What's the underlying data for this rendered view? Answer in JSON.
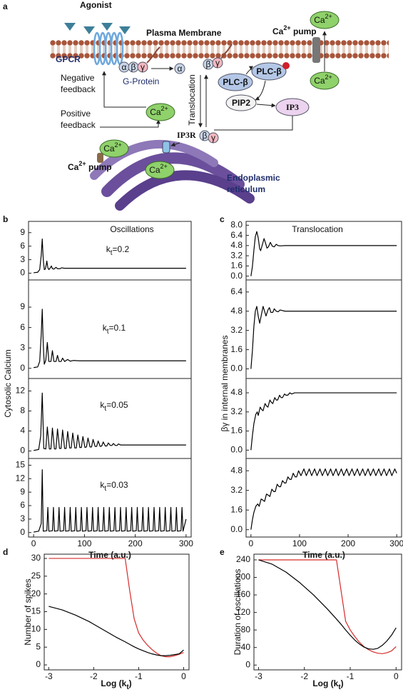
{
  "diagram": {
    "panel_label": "a",
    "agonist": "Agonist",
    "plasma_membrane": "Plasma Membrane",
    "gpcr": "GPCR",
    "g_protein": "G-Protein",
    "g_subunits": [
      "α",
      "β",
      "γ"
    ],
    "alpha": "α",
    "beta_gamma_membrane": [
      "β",
      "γ"
    ],
    "beta_gamma_er": [
      "β",
      "γ"
    ],
    "plc": [
      "PLC-β",
      "PLC-β"
    ],
    "pip2": "PIP2",
    "ip3": "IP3",
    "ip3r": "IP3R",
    "translocation": "Translocation",
    "negative_feedback": [
      "Negative",
      "feedback"
    ],
    "positive_feedback": [
      "Positive",
      "feedback"
    ],
    "pump_top": {
      "label": "Ca",
      "sup": "2+",
      "suffix": " pump"
    },
    "pump_er": {
      "label": "Ca",
      "sup": "2+",
      "suffix": " pump"
    },
    "calcium": [
      {
        "label": "Ca",
        "sup": "2+"
      },
      {
        "label": "Ca",
        "sup": "2+"
      },
      {
        "label": "Ca",
        "sup": "2+"
      },
      {
        "label": "Ca",
        "sup": "2+"
      },
      {
        "label": "Ca",
        "sup": "2+"
      }
    ],
    "er": [
      "Endoplasmic",
      "reticulum"
    ]
  },
  "chart_data": [
    {
      "type": "line",
      "panel": "b",
      "title": "Oscillations",
      "ylabel": "Cytosolic Calcium",
      "annotation": [
        "k",
        "t",
        "=0.2"
      ],
      "color": "#000000",
      "x": [
        0,
        8,
        12,
        15,
        17,
        19,
        21,
        23,
        25,
        26,
        28,
        30,
        33,
        35,
        37,
        40,
        44,
        47,
        52,
        55,
        60,
        300
      ],
      "values": [
        0.1,
        0.2,
        0.8,
        4,
        7.6,
        3,
        0.8,
        0.9,
        2,
        2.7,
        1.2,
        0.8,
        1.2,
        1.6,
        1,
        0.9,
        1.3,
        1,
        1,
        1.2,
        1.1,
        1.1
      ],
      "xlim": [
        -10,
        310
      ],
      "ylim": [
        -1.5,
        11.5
      ],
      "yticks": [
        0,
        3,
        6,
        9
      ]
    },
    {
      "type": "line",
      "annotation": [
        "k",
        "t",
        "=0.1"
      ],
      "color": "#000000",
      "x": [
        0,
        8,
        12,
        15,
        17,
        19,
        21,
        24,
        27,
        30,
        34,
        37,
        40,
        44,
        47,
        50,
        54,
        57,
        61,
        67,
        72,
        78,
        90,
        300
      ],
      "values": [
        0.1,
        0.2,
        1,
        5,
        8.7,
        3.5,
        0.6,
        1.2,
        3.8,
        1,
        1,
        2.6,
        1,
        1,
        1.9,
        1,
        1,
        1.5,
        1,
        1.3,
        1.05,
        1.15,
        1.1,
        1.1
      ],
      "xlim": [
        -10,
        310
      ],
      "ylim": [
        -1.5,
        13
      ],
      "yticks": [
        0,
        3,
        6,
        9
      ]
    },
    {
      "type": "line",
      "annotation": [
        "k",
        "t",
        "=0.05"
      ],
      "color": "#000000",
      "x": [
        0,
        10,
        14,
        17,
        20,
        24,
        27,
        31,
        34,
        37,
        41,
        44,
        47,
        51,
        54,
        57,
        61,
        64,
        67,
        71,
        74,
        77,
        81,
        84,
        87,
        91,
        94,
        97,
        101,
        104,
        107,
        111,
        114,
        117,
        121,
        124,
        127,
        131,
        134,
        137,
        141,
        144,
        147,
        151,
        154,
        157,
        161,
        164,
        167,
        171,
        300
      ],
      "values": [
        0.1,
        0.3,
        3,
        11.6,
        0.5,
        0.4,
        4.8,
        0.4,
        0.4,
        4.6,
        0.4,
        0.4,
        4.4,
        0.5,
        0.5,
        4.2,
        0.5,
        0.5,
        3.9,
        0.6,
        0.6,
        3.6,
        0.6,
        0.6,
        3.2,
        0.7,
        0.7,
        2.9,
        0.7,
        0.8,
        2.6,
        0.8,
        0.8,
        2.3,
        0.9,
        0.9,
        2,
        0.9,
        1,
        1.8,
        1,
        1,
        1.6,
        1.1,
        1.1,
        1.5,
        1.1,
        1.1,
        1.4,
        1.2,
        1.2
      ],
      "xlim": [
        -10,
        310
      ],
      "ylim": [
        -1.5,
        14.5
      ],
      "yticks": [
        0,
        4,
        8,
        12
      ]
    },
    {
      "type": "line",
      "annotation": [
        "k",
        "t",
        "=0.03"
      ],
      "xlabel": "Time (a.u.)",
      "color": "#000000",
      "x": [
        0,
        10,
        15,
        17,
        19,
        26,
        28,
        30,
        37,
        39,
        41,
        48,
        50,
        52,
        59,
        61,
        63,
        70,
        72,
        74,
        81,
        83,
        85,
        92,
        94,
        96,
        103,
        105,
        107,
        114,
        116,
        118,
        125,
        127,
        129,
        136,
        138,
        140,
        147,
        149,
        151,
        158,
        160,
        162,
        169,
        171,
        173,
        180,
        182,
        184,
        191,
        193,
        195,
        202,
        204,
        206,
        213,
        215,
        217,
        224,
        226,
        228,
        235,
        237,
        239,
        246,
        248,
        250,
        257,
        259,
        261,
        268,
        270,
        272,
        279,
        281,
        283,
        290,
        292,
        294,
        300
      ],
      "values": [
        0.1,
        0.3,
        2,
        14,
        0.3,
        0.4,
        5.6,
        0.3,
        0.4,
        5.6,
        0.3,
        0.4,
        5.6,
        0.3,
        0.4,
        5.6,
        0.3,
        0.4,
        5.6,
        0.3,
        0.4,
        5.6,
        0.3,
        0.4,
        5.6,
        0.3,
        0.4,
        5.6,
        0.3,
        0.4,
        5.6,
        0.3,
        0.4,
        5.6,
        0.3,
        0.4,
        5.6,
        0.3,
        0.4,
        5.6,
        0.3,
        0.4,
        5.6,
        0.3,
        0.4,
        5.6,
        0.3,
        0.4,
        5.6,
        0.3,
        0.4,
        5.6,
        0.3,
        0.4,
        5.6,
        0.3,
        0.4,
        5.6,
        0.3,
        0.4,
        5.6,
        0.3,
        0.4,
        5.6,
        0.3,
        0.4,
        5.6,
        0.3,
        0.4,
        5.6,
        0.3,
        0.4,
        5.6,
        0.3,
        0.4,
        5.6,
        0.3,
        0.4,
        5.6,
        0.3,
        3
      ],
      "xlim": [
        -10,
        310
      ],
      "ylim": [
        -1,
        16.5
      ],
      "yticks": [
        0,
        3,
        6,
        9,
        12,
        15
      ],
      "xticks": [
        0,
        100,
        200,
        300
      ]
    },
    {
      "type": "line",
      "panel": "c",
      "title": "Translocation",
      "ylabel": "βγ in internal membranes",
      "color": "#000000",
      "x": [
        0,
        3,
        6,
        9,
        12,
        15,
        18,
        20,
        23,
        27,
        30,
        33,
        36,
        40,
        44,
        48,
        52,
        56,
        60,
        70,
        300
      ],
      "values": [
        0,
        1.5,
        4,
        6.2,
        7,
        6,
        4.3,
        4,
        4.8,
        5.9,
        5.2,
        4.4,
        4.6,
        5.3,
        4.7,
        4.6,
        5,
        4.8,
        4.75,
        4.8,
        4.8
      ],
      "xlim": [
        -10,
        310
      ],
      "ylim": [
        -0.6,
        8.6
      ],
      "yticks": [
        {
          "value": 0,
          "label": "0.0"
        },
        1.6,
        3.2,
        4.8,
        6.4,
        {
          "value": 8,
          "label": "8.0"
        }
      ]
    },
    {
      "type": "line",
      "color": "#000000",
      "x": [
        0,
        3,
        6,
        9,
        12,
        15,
        18,
        21,
        25,
        28,
        31,
        35,
        38,
        41,
        45,
        48,
        52,
        56,
        60,
        70,
        300
      ],
      "values": [
        0,
        1.5,
        3.5,
        4.8,
        5.2,
        4.4,
        3.8,
        4.4,
        5.2,
        4.8,
        4.4,
        4.9,
        5.1,
        4.7,
        4.7,
        5,
        4.8,
        4.75,
        4.9,
        4.8,
        4.8
      ],
      "xlim": [
        -10,
        310
      ],
      "ylim": [
        -0.8,
        7.4
      ],
      "yticks": [
        {
          "value": 0,
          "label": "0.0"
        },
        1.6,
        3.2,
        4.8,
        6.4
      ]
    },
    {
      "type": "line",
      "color": "#000000",
      "x": [
        0,
        3,
        6,
        10,
        13,
        15,
        19,
        22,
        25,
        29,
        32,
        35,
        39,
        42,
        45,
        49,
        52,
        55,
        59,
        62,
        65,
        69,
        72,
        76,
        80,
        84,
        90,
        100,
        300
      ],
      "values": [
        0,
        1.2,
        2.2,
        3,
        3.2,
        2.9,
        3.6,
        3.4,
        3.3,
        3.9,
        3.7,
        3.6,
        4.2,
        4,
        3.9,
        4.4,
        4.2,
        4.2,
        4.6,
        4.4,
        4.4,
        4.7,
        4.6,
        4.6,
        4.8,
        4.7,
        4.8,
        4.8,
        4.8
      ],
      "xlim": [
        -10,
        310
      ],
      "ylim": [
        -0.7,
        6
      ],
      "yticks": [
        {
          "value": 0,
          "label": "0.0"
        },
        1.6,
        3.2,
        4.8
      ]
    },
    {
      "type": "line",
      "xlabel": "Time (a.u.)",
      "color": "#000000",
      "x": [
        0,
        3,
        6,
        10,
        14,
        17,
        21,
        25,
        28,
        32,
        36,
        39,
        43,
        47,
        50,
        54,
        58,
        61,
        65,
        69,
        72,
        76,
        80,
        83,
        87,
        91,
        94,
        98,
        103,
        109,
        114,
        120,
        125,
        131,
        136,
        142,
        147,
        153,
        158,
        164,
        169,
        175,
        180,
        186,
        191,
        197,
        202,
        208,
        213,
        219,
        224,
        230,
        235,
        241,
        246,
        252,
        257,
        263,
        268,
        274,
        279,
        285,
        290,
        296,
        300
      ],
      "values": [
        0,
        0.8,
        1.4,
        1.9,
        2.1,
        1.9,
        2.5,
        2.4,
        2.3,
        2.9,
        2.8,
        2.7,
        3.3,
        3.1,
        3.1,
        3.7,
        3.5,
        3.5,
        4,
        3.8,
        3.8,
        4.3,
        4.1,
        4.1,
        4.6,
        4.3,
        4.3,
        4.8,
        4.4,
        4.95,
        4.4,
        4.95,
        4.4,
        4.95,
        4.4,
        4.95,
        4.4,
        4.95,
        4.4,
        4.95,
        4.4,
        4.95,
        4.4,
        4.95,
        4.4,
        4.95,
        4.4,
        4.95,
        4.4,
        4.95,
        4.4,
        4.95,
        4.4,
        4.95,
        4.4,
        4.95,
        4.4,
        4.95,
        4.4,
        4.95,
        4.4,
        4.95,
        4.4,
        4.95,
        4.6
      ],
      "xlim": [
        -10,
        310
      ],
      "ylim": [
        -0.6,
        5.8
      ],
      "yticks": [
        {
          "value": 0,
          "label": "0.0"
        },
        1.6,
        3.2,
        4.8
      ],
      "xticks": [
        0,
        100,
        200,
        300
      ]
    },
    {
      "type": "line",
      "panel": "d",
      "ylabel": "Number of spikes",
      "xlabel": [
        "Log (k",
        "t",
        ")"
      ],
      "x": [
        -3,
        -2.7,
        -2.4,
        -2.1,
        -1.8,
        -1.5,
        -1.3,
        -1.2,
        -1.1,
        -1,
        -0.9,
        -0.8,
        -0.7,
        -0.6,
        -0.5,
        -0.4,
        -0.3,
        -0.2,
        -0.1,
        0
      ],
      "series": [
        {
          "color": "#d62a2a",
          "values": [
            30,
            30,
            30,
            30,
            30,
            30,
            30,
            21,
            13,
            9,
            7,
            5.5,
            4.3,
            3.3,
            2.6,
            2.3,
            2.3,
            2.6,
            3,
            3.5
          ]
        },
        {
          "color": "#000000",
          "values": [
            16.5,
            15.5,
            14,
            12.2,
            10,
            7.8,
            6.5,
            5.8,
            5.1,
            4.5,
            4,
            3.5,
            3.1,
            2.8,
            2.6,
            2.6,
            2.7,
            2.9,
            3.1,
            4.2
          ]
        }
      ],
      "xlim": [
        -3.1,
        0.12
      ],
      "ylim": [
        -1.4,
        31.2
      ],
      "xticks": [
        -3,
        -2,
        -1,
        0
      ],
      "yticks": [
        0,
        5,
        10,
        15,
        20,
        25,
        30
      ]
    },
    {
      "type": "line",
      "panel": "e",
      "ylabel": "Duration of oscillations",
      "xlabel": [
        "Log (k",
        "t",
        ")"
      ],
      "x": [
        -3,
        -2.7,
        -2.4,
        -2.1,
        -1.8,
        -1.5,
        -1.3,
        -1.2,
        -1.1,
        -1,
        -0.9,
        -0.8,
        -0.7,
        -0.6,
        -0.5,
        -0.4,
        -0.3,
        -0.2,
        -0.1,
        0
      ],
      "series": [
        {
          "color": "#d62a2a",
          "values": [
            240,
            240,
            240,
            240,
            240,
            240,
            240,
            170,
            100,
            80,
            65,
            52,
            42,
            35,
            30,
            27,
            26,
            28,
            32,
            42
          ]
        },
        {
          "color": "#000000",
          "values": [
            240,
            230,
            212,
            188,
            160,
            128,
            105,
            93,
            80,
            68,
            57,
            48,
            41,
            37,
            36,
            38,
            45,
            55,
            68,
            85
          ]
        }
      ],
      "xlim": [
        -3.1,
        0.12
      ],
      "ylim": [
        -11,
        253
      ],
      "xticks": [
        -3,
        -2,
        -1,
        0
      ],
      "yticks": [
        0,
        40,
        80,
        120,
        160,
        200,
        240
      ]
    }
  ]
}
